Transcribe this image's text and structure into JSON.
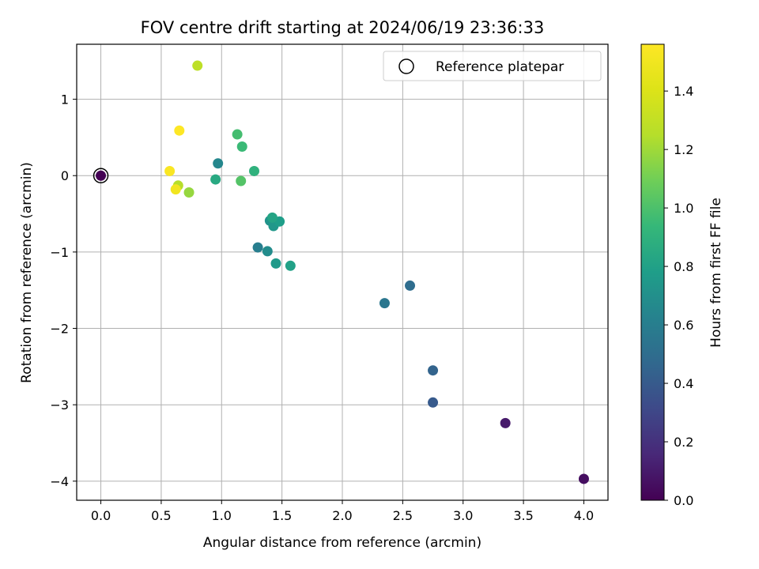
{
  "chart_data": {
    "type": "scatter",
    "title": "FOV centre drift starting at 2024/06/19 23:36:33",
    "xlabel": "Angular distance from reference (arcmin)",
    "ylabel": "Rotation from reference (arcmin)",
    "xlim": [
      -0.2,
      4.2
    ],
    "ylim": [
      -4.25,
      1.72
    ],
    "xticks": [
      0.0,
      0.5,
      1.0,
      1.5,
      2.0,
      2.5,
      3.0,
      3.5,
      4.0
    ],
    "xtick_labels": [
      "0.0",
      "0.5",
      "1.0",
      "1.5",
      "2.0",
      "2.5",
      "3.0",
      "3.5",
      "4.0"
    ],
    "yticks": [
      1,
      0,
      -1,
      -2,
      -3,
      -4
    ],
    "ytick_labels": [
      "1",
      "0",
      "−1",
      "−2",
      "−3",
      "−4"
    ],
    "grid": true,
    "legend": {
      "position": "top-right",
      "entries": [
        "Reference platepar"
      ]
    },
    "reference": {
      "x": 0.0,
      "y": 0.0
    },
    "colorbar": {
      "label": "Hours from first FF file",
      "range": [
        0.0,
        1.56
      ],
      "ticks": [
        0.0,
        0.2,
        0.4,
        0.6,
        0.8,
        1.0,
        1.2,
        1.4
      ],
      "tick_labels": [
        "0.0",
        "0.2",
        "0.4",
        "0.6",
        "0.8",
        "1.0",
        "1.2",
        "1.4"
      ],
      "colormap": "viridis"
    },
    "points": [
      {
        "x": 0.0,
        "y": 0.0,
        "hours": 0.0
      },
      {
        "x": 4.0,
        "y": -3.97,
        "hours": 0.05
      },
      {
        "x": 3.35,
        "y": -3.24,
        "hours": 0.1
      },
      {
        "x": 2.75,
        "y": -2.97,
        "hours": 0.4
      },
      {
        "x": 2.75,
        "y": -2.55,
        "hours": 0.45
      },
      {
        "x": 2.56,
        "y": -1.44,
        "hours": 0.5
      },
      {
        "x": 2.35,
        "y": -1.67,
        "hours": 0.55
      },
      {
        "x": 1.3,
        "y": -0.94,
        "hours": 0.6
      },
      {
        "x": 0.97,
        "y": 0.16,
        "hours": 0.65
      },
      {
        "x": 1.38,
        "y": -0.99,
        "hours": 0.68
      },
      {
        "x": 1.4,
        "y": -0.59,
        "hours": 0.72
      },
      {
        "x": 1.43,
        "y": -0.66,
        "hours": 0.74
      },
      {
        "x": 1.45,
        "y": -1.15,
        "hours": 0.76
      },
      {
        "x": 1.48,
        "y": -0.6,
        "hours": 0.78
      },
      {
        "x": 1.57,
        "y": -1.18,
        "hours": 0.8
      },
      {
        "x": 1.42,
        "y": -0.55,
        "hours": 0.82
      },
      {
        "x": 0.95,
        "y": -0.05,
        "hours": 0.85
      },
      {
        "x": 1.27,
        "y": 0.06,
        "hours": 0.9
      },
      {
        "x": 1.17,
        "y": 0.38,
        "hours": 0.95
      },
      {
        "x": 1.13,
        "y": 0.54,
        "hours": 0.98
      },
      {
        "x": 1.16,
        "y": -0.07,
        "hours": 1.02
      },
      {
        "x": 0.73,
        "y": -0.22,
        "hours": 1.18
      },
      {
        "x": 0.64,
        "y": -0.13,
        "hours": 1.25
      },
      {
        "x": 0.8,
        "y": 1.44,
        "hours": 1.28
      },
      {
        "x": 0.62,
        "y": -0.18,
        "hours": 1.5
      },
      {
        "x": 0.57,
        "y": 0.06,
        "hours": 1.54
      },
      {
        "x": 0.65,
        "y": 0.59,
        "hours": 1.56
      }
    ]
  }
}
